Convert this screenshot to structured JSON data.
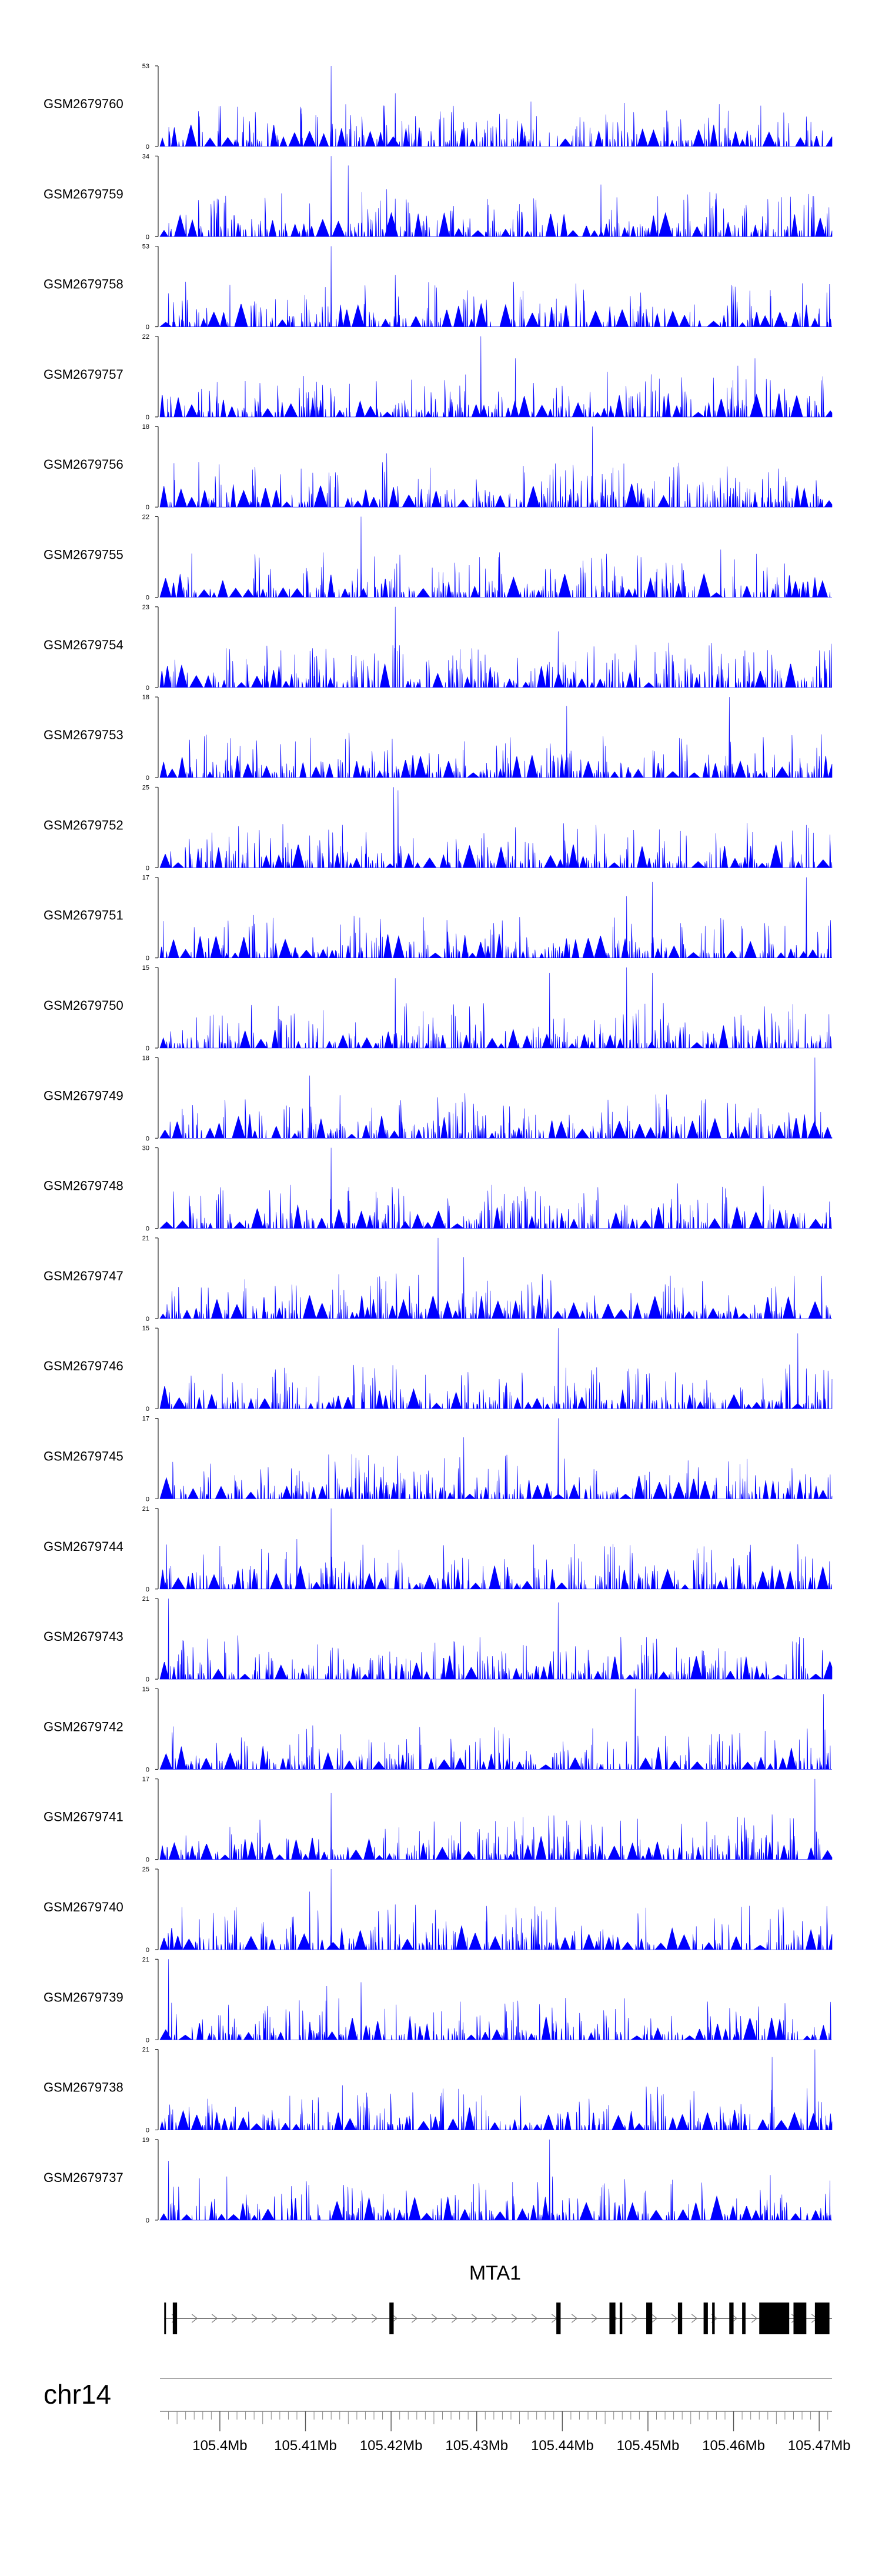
{
  "chart_data": {
    "type": "area",
    "chromosome": "chr14",
    "gene": "MTA1",
    "xlim": [
      105.393,
      105.4715
    ],
    "x_tick_labels": [
      "105.4Mb",
      "105.41Mb",
      "105.42Mb",
      "105.43Mb",
      "105.44Mb",
      "105.45Mb",
      "105.46Mb",
      "105.47Mb"
    ],
    "x_ticks": [
      105.4,
      105.41,
      105.42,
      105.43,
      105.44,
      105.45,
      105.46,
      105.47
    ],
    "x_minor_ticks": [
      105.395,
      105.405,
      105.415,
      105.425,
      105.435,
      105.445,
      105.455,
      105.465
    ],
    "series": [
      {
        "name": "GSM2679760",
        "ymax": 53,
        "color": "#0000ff",
        "seed": 760,
        "peaks": [
          [
            105.4095,
            25
          ],
          [
            105.413,
            53
          ],
          [
            105.4205,
            35
          ],
          [
            105.4195,
            14
          ],
          [
            105.4285,
            16
          ]
        ]
      },
      {
        "name": "GSM2679759",
        "ymax": 34,
        "color": "#0000ff",
        "seed": 759,
        "peaks": [
          [
            105.4105,
            14
          ],
          [
            105.413,
            34
          ],
          [
            105.415,
            30
          ],
          [
            105.4195,
            20
          ],
          [
            105.4205,
            16
          ],
          [
            105.4445,
            22
          ]
        ]
      },
      {
        "name": "GSM2679758",
        "ymax": 53,
        "color": "#0000ff",
        "seed": 758,
        "peaks": [
          [
            105.413,
            53
          ],
          [
            105.4205,
            34
          ],
          [
            105.394,
            22
          ],
          [
            105.47,
            12
          ]
        ]
      },
      {
        "name": "GSM2679757",
        "ymax": 22,
        "color": "#0000ff",
        "seed": 757,
        "peaks": [
          [
            105.4305,
            22
          ],
          [
            105.4345,
            16
          ],
          [
            105.4605,
            14
          ],
          [
            105.4625,
            16
          ]
        ]
      },
      {
        "name": "GSM2679756",
        "ymax": 18,
        "color": "#0000ff",
        "seed": 756,
        "peaks": [
          [
            105.4435,
            18
          ],
          [
            105.4195,
            12
          ]
        ]
      },
      {
        "name": "GSM2679755",
        "ymax": 22,
        "color": "#0000ff",
        "seed": 755,
        "peaks": [
          [
            105.4165,
            22
          ],
          [
            105.4585,
            13
          ]
        ]
      },
      {
        "name": "GSM2679754",
        "ymax": 23,
        "color": "#0000ff",
        "seed": 754,
        "peaks": [
          [
            105.4205,
            23
          ],
          [
            105.4395,
            16
          ]
        ]
      },
      {
        "name": "GSM2679753",
        "ymax": 18,
        "color": "#0000ff",
        "seed": 753,
        "peaks": [
          [
            105.4595,
            18
          ],
          [
            105.4405,
            16
          ]
        ]
      },
      {
        "name": "GSM2679752",
        "ymax": 25,
        "color": "#0000ff",
        "seed": 752,
        "peaks": [
          [
            105.4203,
            25
          ],
          [
            105.4208,
            24
          ],
          [
            105.4105,
            10
          ]
        ]
      },
      {
        "name": "GSM2679751",
        "ymax": 17,
        "color": "#0000ff",
        "seed": 751,
        "peaks": [
          [
            105.4505,
            16
          ],
          [
            105.4685,
            17
          ],
          [
            105.4475,
            13
          ]
        ]
      },
      {
        "name": "GSM2679750",
        "ymax": 15,
        "color": "#0000ff",
        "seed": 750,
        "peaks": [
          [
            105.4205,
            13
          ],
          [
            105.4385,
            14
          ],
          [
            105.4475,
            15
          ],
          [
            105.4505,
            14
          ]
        ]
      },
      {
        "name": "GSM2679749",
        "ymax": 18,
        "color": "#0000ff",
        "seed": 749,
        "peaks": [
          [
            105.4695,
            18
          ],
          [
            105.4105,
            14
          ]
        ]
      },
      {
        "name": "GSM2679748",
        "ymax": 30,
        "color": "#0000ff",
        "seed": 748,
        "peaks": [
          [
            105.413,
            30
          ],
          [
            105.415,
            14
          ],
          [
            105.4215,
            12
          ]
        ]
      },
      {
        "name": "GSM2679747",
        "ymax": 21,
        "color": "#0000ff",
        "seed": 747,
        "peaks": [
          [
            105.4255,
            21
          ],
          [
            105.4285,
            16
          ]
        ]
      },
      {
        "name": "GSM2679746",
        "ymax": 15,
        "color": "#0000ff",
        "seed": 746,
        "peaks": [
          [
            105.4395,
            15
          ],
          [
            105.4675,
            14
          ]
        ]
      },
      {
        "name": "GSM2679745",
        "ymax": 17,
        "color": "#0000ff",
        "seed": 745,
        "peaks": [
          [
            105.4395,
            17
          ],
          [
            105.4285,
            13
          ]
        ]
      },
      {
        "name": "GSM2679744",
        "ymax": 21,
        "color": "#0000ff",
        "seed": 744,
        "peaks": [
          [
            105.413,
            21
          ],
          [
            105.409,
            13
          ]
        ]
      },
      {
        "name": "GSM2679743",
        "ymax": 21,
        "color": "#0000ff",
        "seed": 743,
        "peaks": [
          [
            105.4395,
            20
          ],
          [
            105.394,
            21
          ]
        ]
      },
      {
        "name": "GSM2679742",
        "ymax": 15,
        "color": "#0000ff",
        "seed": 742,
        "peaks": [
          [
            105.4485,
            15
          ],
          [
            105.4705,
            14
          ]
        ]
      },
      {
        "name": "GSM2679741",
        "ymax": 17,
        "color": "#0000ff",
        "seed": 741,
        "peaks": [
          [
            105.4695,
            17
          ],
          [
            105.413,
            14
          ]
        ]
      },
      {
        "name": "GSM2679740",
        "ymax": 25,
        "color": "#0000ff",
        "seed": 740,
        "peaks": [
          [
            105.413,
            25
          ],
          [
            105.4105,
            18
          ],
          [
            105.4205,
            14
          ]
        ]
      },
      {
        "name": "GSM2679739",
        "ymax": 21,
        "color": "#0000ff",
        "seed": 739,
        "peaks": [
          [
            105.394,
            21
          ],
          [
            105.4125,
            14
          ],
          [
            105.4165,
            15
          ]
        ]
      },
      {
        "name": "GSM2679738",
        "ymax": 21,
        "color": "#0000ff",
        "seed": 738,
        "peaks": [
          [
            105.4645,
            19
          ],
          [
            105.4695,
            21
          ]
        ]
      },
      {
        "name": "GSM2679737",
        "ymax": 19,
        "color": "#0000ff",
        "seed": 737,
        "peaks": [
          [
            105.4385,
            19
          ],
          [
            105.394,
            14
          ]
        ]
      }
    ],
    "gene_model": {
      "strand": "+",
      "start": 105.3935,
      "end": 105.4715,
      "exons": [
        [
          105.3935,
          105.3937
        ],
        [
          105.3945,
          105.395
        ],
        [
          105.4198,
          105.4203
        ],
        [
          105.4393,
          105.4398
        ],
        [
          105.4455,
          105.4462
        ],
        [
          105.4467,
          105.447
        ],
        [
          105.4498,
          105.4505
        ],
        [
          105.4535,
          105.454
        ],
        [
          105.4565,
          105.457
        ],
        [
          105.4575,
          105.4578
        ],
        [
          105.4595,
          105.46
        ],
        [
          105.461,
          105.4614
        ],
        [
          105.463,
          105.4665
        ],
        [
          105.467,
          105.4685
        ],
        [
          105.4695,
          105.4712
        ]
      ]
    }
  }
}
